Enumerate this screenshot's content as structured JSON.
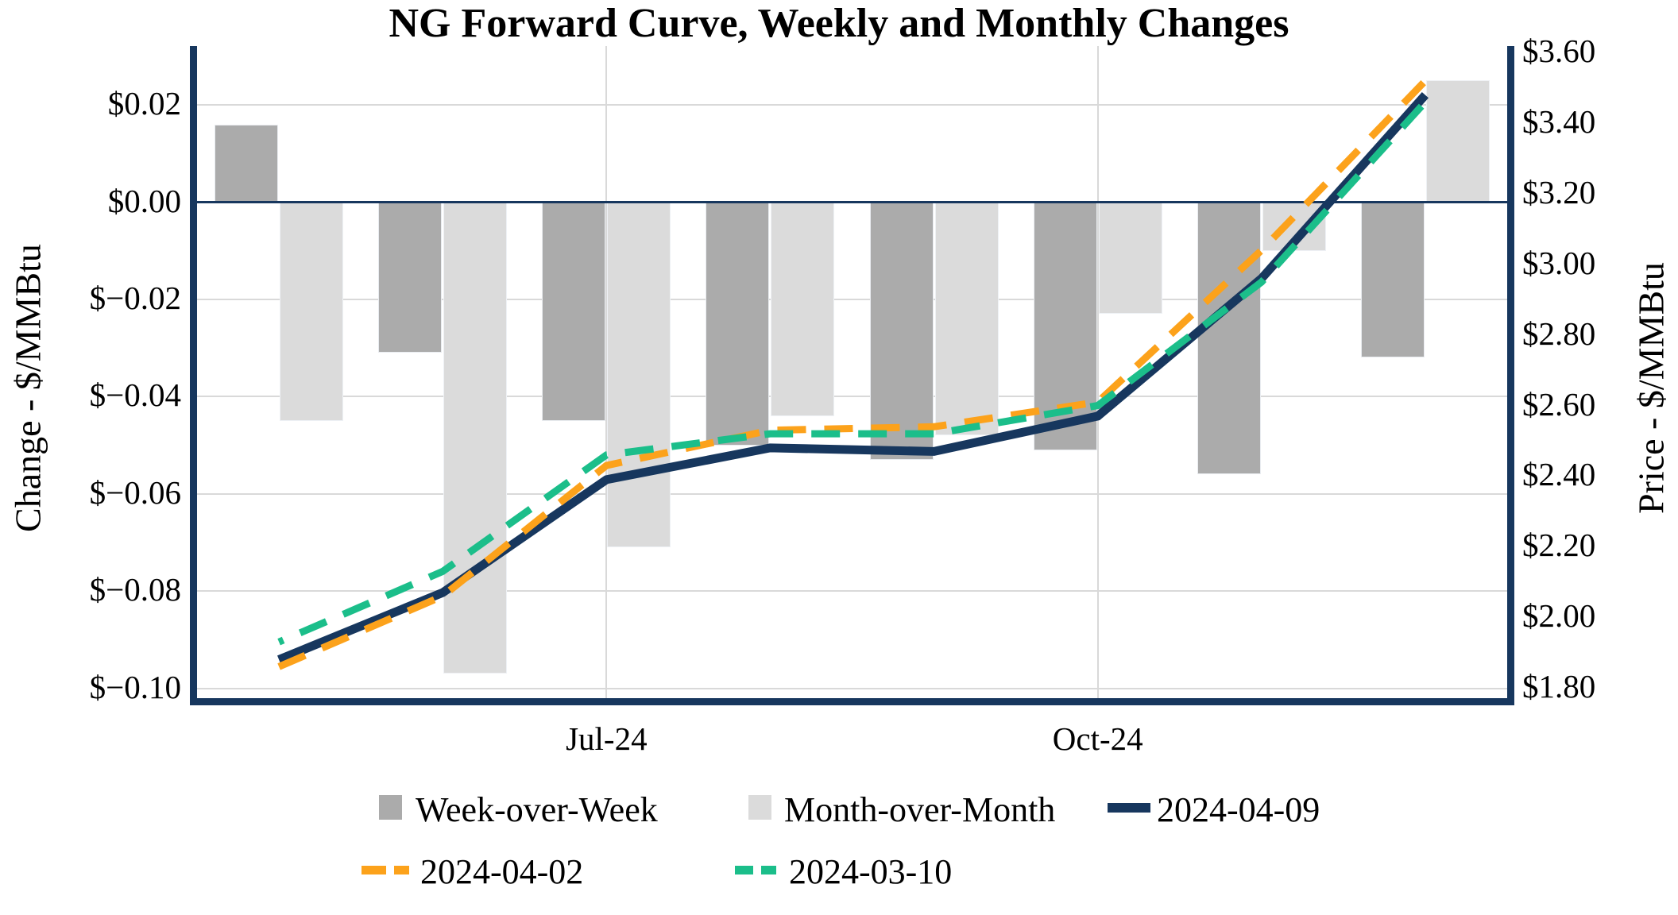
{
  "title": "NG Forward Curve, Weekly and Monthly Changes",
  "colors": {
    "navy": "#17375E",
    "orange": "#FCA21B",
    "green": "#1BBE8A",
    "dark_gray": "#ABABAB",
    "light_gray": "#DBDBDB",
    "gridline": "#D9D9D9"
  },
  "chart_data": {
    "type": "combo-bar-line",
    "categories": [
      "",
      "",
      "Jul-24",
      "",
      "",
      "Oct-24",
      "",
      ""
    ],
    "x_tick_labels": [
      {
        "label": "Jul-24",
        "group_index": 2
      },
      {
        "label": "Oct-24",
        "group_index": 5
      }
    ],
    "vertical_gridline_groups": [
      2,
      5
    ],
    "left_axis": {
      "title": "Change - $/MMBtu",
      "tick_labels": [
        "$0.02",
        "$0.00",
        "$−0.02",
        "$−0.04",
        "$−0.06",
        "$−0.08",
        "$−0.10"
      ],
      "tick_values": [
        0.02,
        0.0,
        -0.02,
        -0.04,
        -0.06,
        -0.08,
        -0.1
      ],
      "top_value": 0.0321,
      "bottom_value": -0.102,
      "grid": true
    },
    "right_axis": {
      "title": "Price - $/MMBtu",
      "tick_labels": [
        "$3.60",
        "$3.40",
        "$3.20",
        "$3.00",
        "$2.80",
        "$2.60",
        "$2.40",
        "$2.20",
        "$2.00",
        "$1.80"
      ],
      "tick_values": [
        3.6,
        3.4,
        3.2,
        3.0,
        2.8,
        2.6,
        2.4,
        2.2,
        2.0,
        1.8
      ],
      "top_value": 3.6186,
      "bottom_value": 1.7709,
      "grid": false
    },
    "bar_series": [
      {
        "name": "Week-over-Week",
        "axis": "left",
        "color_key": "dark_gray",
        "values": [
          0.016,
          -0.031,
          -0.045,
          -0.05,
          -0.053,
          -0.051,
          -0.056,
          -0.032
        ]
      },
      {
        "name": "Month-over-Month",
        "axis": "left",
        "color_key": "light_gray",
        "values": [
          -0.045,
          -0.097,
          -0.071,
          -0.044,
          -0.048,
          -0.023,
          -0.01,
          0.025
        ]
      }
    ],
    "line_series": [
      {
        "name": "2024-04-09",
        "axis": "right",
        "style": "solid",
        "color_key": "navy",
        "values": [
          1.88,
          2.07,
          2.39,
          2.48,
          2.47,
          2.57,
          2.96,
          3.48
        ]
      },
      {
        "name": "2024-04-02",
        "axis": "right",
        "style": "dashed",
        "color_key": "orange",
        "values": [
          1.86,
          2.06,
          2.43,
          2.53,
          2.54,
          2.61,
          3.04,
          3.52
        ]
      },
      {
        "name": "2024-03-10",
        "axis": "right",
        "style": "dashed",
        "color_key": "green",
        "values": [
          1.93,
          2.13,
          2.46,
          2.52,
          2.52,
          2.6,
          2.95,
          3.46
        ]
      }
    ],
    "legend": [
      {
        "label": "Week-over-Week",
        "marker": "square",
        "color_key": "dark_gray"
      },
      {
        "label": "Month-over-Month",
        "marker": "square",
        "color_key": "light_gray"
      },
      {
        "label": "2024-04-09",
        "marker": "line",
        "color_key": "navy"
      },
      {
        "label": "2024-04-02",
        "marker": "dashes",
        "color_key": "orange"
      },
      {
        "label": "2024-03-10",
        "marker": "dashes",
        "color_key": "green"
      }
    ]
  }
}
